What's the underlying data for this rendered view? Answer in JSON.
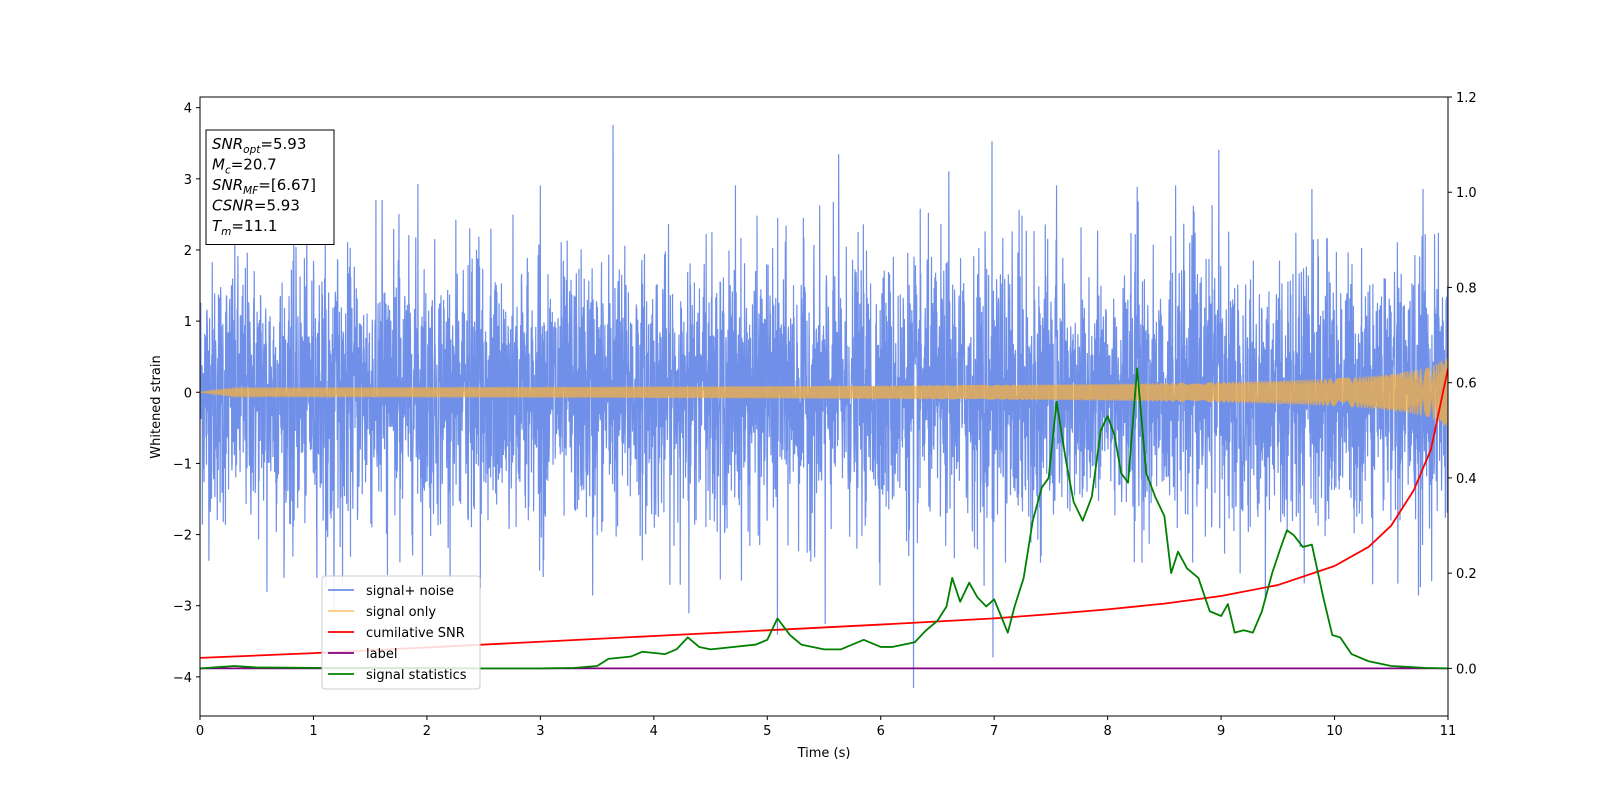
{
  "chart_data": {
    "type": "line",
    "xlabel": "Time (s)",
    "ylabel": "Whitened strain",
    "xlim": [
      0,
      11
    ],
    "ylim": [
      -4.55,
      4.15
    ],
    "y2lim": [
      -0.1,
      1.2
    ],
    "x_ticks": [
      0,
      1,
      2,
      3,
      4,
      5,
      6,
      7,
      8,
      9,
      10,
      11
    ],
    "y_ticks": [
      -4,
      -3,
      -2,
      -1,
      0,
      1,
      2,
      3,
      4
    ],
    "y_tick_labels": [
      "−4",
      "−3",
      "−2",
      "−1",
      "0",
      "1",
      "2",
      "3",
      "4"
    ],
    "y2_ticks": [
      0.0,
      0.2,
      0.4,
      0.6,
      0.8,
      1.0,
      1.2
    ],
    "y2_tick_labels": [
      "0.0",
      "0.2",
      "0.4",
      "0.6",
      "0.8",
      "1.0",
      "1.2"
    ],
    "grid": false,
    "legend_placement": "lower-left",
    "annotation_box": {
      "placement": "upper-left",
      "lines": [
        {
          "base": "SNR",
          "sub": "opt",
          "value": "=5.93"
        },
        {
          "base": "M",
          "sub": "c",
          "value": "=20.7"
        },
        {
          "base": "SNR",
          "sub": "MF",
          "value": "=[6.67]"
        },
        {
          "base": "CSNR",
          "sub": "",
          "value": "=5.93"
        },
        {
          "base": "T",
          "sub": "m",
          "value": "=11.1"
        }
      ]
    },
    "series": [
      {
        "name": "signal+ noise",
        "axis": "left",
        "color": "#6f8fe8",
        "kind": "noise",
        "sigma": 0.9,
        "spikes": [
          {
            "x": 3.64,
            "y": 3.75
          },
          {
            "x": 6.98,
            "y": 3.52
          },
          {
            "x": 5.63,
            "y": 3.34
          },
          {
            "x": 8.98,
            "y": 3.4
          },
          {
            "x": 6.6,
            "y": 3.1
          },
          {
            "x": 6.29,
            "y": -4.15
          },
          {
            "x": 5.09,
            "y": -3.4
          },
          {
            "x": 5.51,
            "y": -3.25
          },
          {
            "x": 6.99,
            "y": -3.72
          },
          {
            "x": 1.18,
            "y": -3.05
          },
          {
            "x": 2.47,
            "y": -2.75
          },
          {
            "x": 3.46,
            "y": -2.85
          },
          {
            "x": 4.31,
            "y": -3.1
          },
          {
            "x": 10.74,
            "y": -2.85
          },
          {
            "x": 9.39,
            "y": -2.9
          },
          {
            "x": 0.59,
            "y": -2.8
          },
          {
            "x": 1.92,
            "y": 2.92
          },
          {
            "x": 3.0,
            "y": 2.9
          },
          {
            "x": 4.72,
            "y": 2.9
          },
          {
            "x": 8.6,
            "y": 2.9
          },
          {
            "x": 9.8,
            "y": 2.85
          },
          {
            "x": 7.55,
            "y": 2.9
          },
          {
            "x": 8.26,
            "y": 2.88
          },
          {
            "x": 10.78,
            "y": 2.85
          }
        ]
      },
      {
        "name": "signal only",
        "axis": "left",
        "color": "#f5b041",
        "kind": "chirp",
        "amplitude_at_end": 0.55
      },
      {
        "name": "cumilative SNR",
        "axis": "right",
        "color": "#ff0000",
        "kind": "line",
        "x": [
          0,
          1,
          2,
          3,
          4,
          5,
          6,
          7,
          7.5,
          8,
          8.5,
          9,
          9.5,
          10,
          10.3,
          10.5,
          10.7,
          10.85,
          11
        ],
        "y": [
          0.022,
          0.032,
          0.044,
          0.056,
          0.068,
          0.08,
          0.092,
          0.105,
          0.114,
          0.124,
          0.136,
          0.152,
          0.175,
          0.215,
          0.255,
          0.3,
          0.375,
          0.46,
          0.63
        ]
      },
      {
        "name": "label",
        "axis": "right",
        "color": "#800080",
        "kind": "line",
        "x": [
          0,
          11
        ],
        "y": [
          0,
          0
        ]
      },
      {
        "name": "signal statistics",
        "axis": "right",
        "color": "#008000",
        "kind": "line",
        "x": [
          0,
          0.3,
          0.5,
          1,
          1.5,
          2,
          2.5,
          3,
          3.3,
          3.5,
          3.6,
          3.8,
          3.9,
          4.1,
          4.2,
          4.3,
          4.4,
          4.5,
          4.7,
          4.9,
          5.0,
          5.09,
          5.2,
          5.3,
          5.5,
          5.65,
          5.75,
          5.85,
          6.0,
          6.1,
          6.2,
          6.3,
          6.4,
          6.5,
          6.58,
          6.63,
          6.7,
          6.78,
          6.85,
          6.93,
          7.0,
          7.06,
          7.12,
          7.18,
          7.26,
          7.34,
          7.42,
          7.48,
          7.55,
          7.63,
          7.7,
          7.78,
          7.86,
          7.94,
          8.0,
          8.06,
          8.12,
          8.18,
          8.26,
          8.34,
          8.42,
          8.5,
          8.56,
          8.62,
          8.7,
          8.8,
          8.9,
          9.0,
          9.06,
          9.12,
          9.2,
          9.28,
          9.36,
          9.45,
          9.52,
          9.58,
          9.64,
          9.72,
          9.8,
          9.9,
          9.98,
          10.05,
          10.15,
          10.3,
          10.5,
          10.8,
          11
        ],
        "y": [
          0,
          0.005,
          0.002,
          0.001,
          0.001,
          0.001,
          0.0,
          0.0,
          0.001,
          0.005,
          0.02,
          0.025,
          0.035,
          0.03,
          0.04,
          0.065,
          0.045,
          0.04,
          0.045,
          0.05,
          0.06,
          0.105,
          0.07,
          0.05,
          0.04,
          0.04,
          0.05,
          0.06,
          0.045,
          0.045,
          0.05,
          0.055,
          0.08,
          0.1,
          0.13,
          0.19,
          0.14,
          0.18,
          0.15,
          0.13,
          0.145,
          0.11,
          0.075,
          0.13,
          0.19,
          0.31,
          0.38,
          0.4,
          0.56,
          0.44,
          0.35,
          0.31,
          0.36,
          0.5,
          0.53,
          0.49,
          0.41,
          0.39,
          0.63,
          0.41,
          0.36,
          0.32,
          0.2,
          0.245,
          0.21,
          0.19,
          0.12,
          0.11,
          0.135,
          0.075,
          0.08,
          0.075,
          0.12,
          0.2,
          0.25,
          0.29,
          0.28,
          0.255,
          0.26,
          0.15,
          0.07,
          0.065,
          0.03,
          0.015,
          0.005,
          0.001,
          0.0
        ]
      }
    ]
  }
}
